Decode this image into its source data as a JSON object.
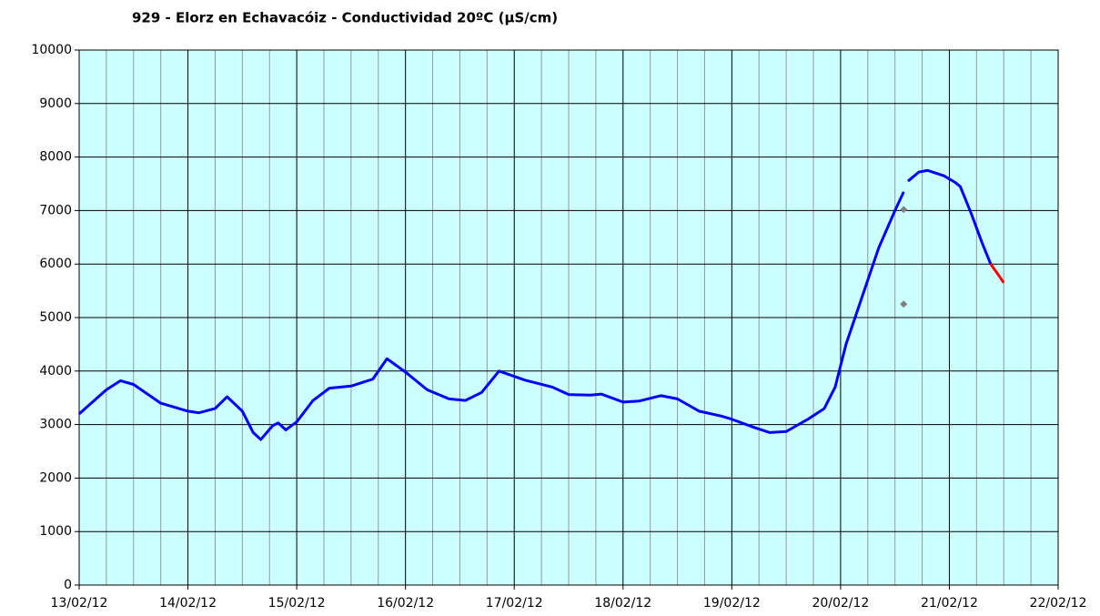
{
  "chart_data": {
    "type": "line",
    "title": "929 - Elorz en Echavacóiz - Conductividad 20ºC (µS/cm)",
    "xlim": [
      0,
      9
    ],
    "xticks": [
      {
        "value": 0,
        "label": "13/02/12"
      },
      {
        "value": 1,
        "label": "14/02/12"
      },
      {
        "value": 2,
        "label": "15/02/12"
      },
      {
        "value": 3,
        "label": "16/02/12"
      },
      {
        "value": 4,
        "label": "17/02/12"
      },
      {
        "value": 5,
        "label": "18/02/12"
      },
      {
        "value": 6,
        "label": "19/02/12"
      },
      {
        "value": 7,
        "label": "20/02/12"
      },
      {
        "value": 8,
        "label": "21/02/12"
      },
      {
        "value": 9,
        "label": "22/02/12"
      }
    ],
    "x_minor_ticks": [
      0.25,
      0.5,
      0.75,
      1.25,
      1.5,
      1.75,
      2.25,
      2.5,
      2.75,
      3.25,
      3.5,
      3.75,
      4.25,
      4.5,
      4.75,
      5.25,
      5.5,
      5.75,
      6.25,
      6.5,
      6.75,
      7.25,
      7.5,
      7.75,
      8.25,
      8.5,
      8.75
    ],
    "ylim": [
      0,
      10000
    ],
    "yticks": [
      0,
      1000,
      2000,
      3000,
      4000,
      5000,
      6000,
      7000,
      8000,
      9000,
      10000
    ],
    "grid": true,
    "background": "#ccffff",
    "series": [
      {
        "color": "#0000ff",
        "x": [
          0,
          0.25,
          0.38,
          0.5,
          0.75,
          1.0,
          1.1,
          1.25,
          1.36,
          1.5,
          1.6,
          1.67,
          1.78,
          1.83,
          1.9,
          2.0,
          2.15,
          2.3,
          2.5,
          2.7,
          2.83,
          3.0,
          3.2,
          3.4,
          3.55,
          3.7,
          3.86,
          4.1,
          4.35,
          4.5,
          4.7,
          4.8,
          5.0,
          5.15,
          5.35,
          5.5,
          5.7,
          5.9,
          6.0,
          6.2,
          6.35,
          6.5,
          6.7,
          6.85,
          6.95,
          7.05,
          7.2,
          7.35,
          7.5,
          7.58,
          7.6,
          7.62,
          7.72,
          7.8,
          7.95,
          8.05,
          8.1,
          8.2,
          8.3,
          8.38
        ],
        "values": [
          3200,
          3650,
          3820,
          3750,
          3400,
          3250,
          3220,
          3300,
          3520,
          3250,
          2850,
          2720,
          2980,
          3030,
          2900,
          3050,
          3450,
          3680,
          3720,
          3850,
          4230,
          3980,
          3650,
          3480,
          3450,
          3600,
          4000,
          3830,
          3700,
          3560,
          3550,
          3570,
          3420,
          3440,
          3540,
          3480,
          3250,
          3160,
          3100,
          2950,
          2850,
          2870,
          3100,
          3300,
          3700,
          4500,
          5400,
          6300,
          7000,
          7350,
          null,
          7550,
          7720,
          7750,
          7650,
          7530,
          7450,
          6950,
          6400,
          6000
        ]
      },
      {
        "color": "#ff0000",
        "x": [
          8.38,
          8.45,
          8.5
        ],
        "values": [
          6000,
          5800,
          5650
        ]
      },
      {
        "color": "#808080",
        "marker": "diamond",
        "x": [
          7.58,
          7.58
        ],
        "values": [
          7020,
          5250
        ]
      }
    ]
  }
}
